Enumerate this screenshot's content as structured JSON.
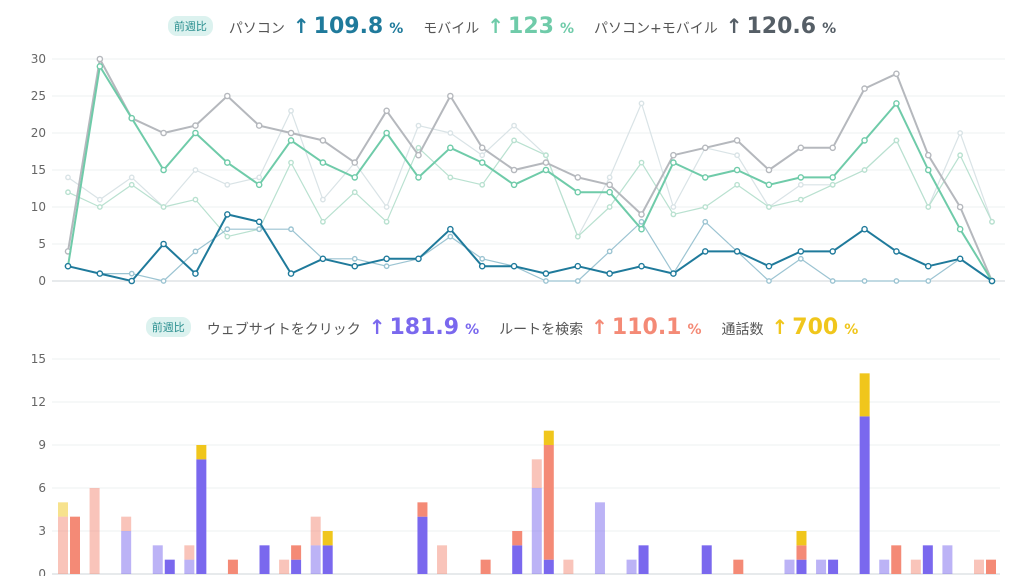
{
  "colors": {
    "pc": "#1f7a9b",
    "mobile": "#6fcba9",
    "pc_mobile": "#555e66",
    "website_click": "#7a68ee",
    "route_search": "#f48a76",
    "calls": "#f0c61c",
    "badge": "#2a8f8f"
  },
  "top_legend": {
    "badge": "前週比",
    "items": [
      {
        "name": "パソコン",
        "arrow": "↑",
        "value": "109.8",
        "unit": "%",
        "color": "#1f7a9b",
        "arrow_color": "#1f7a9b"
      },
      {
        "name": "モバイル",
        "arrow": "↑",
        "value": "123",
        "unit": "%",
        "color": "#6fcba9",
        "arrow_color": "#6fcba9"
      },
      {
        "name": "パソコン+モバイル",
        "arrow": "↑",
        "value": "120.6",
        "unit": "%",
        "color": "#555e66",
        "arrow_color": "#555e66"
      }
    ]
  },
  "bottom_legend": {
    "badge": "前週比",
    "items": [
      {
        "name": "ウェブサイトをクリック",
        "arrow": "↑",
        "value": "181.9",
        "unit": "%",
        "color": "#7a68ee",
        "arrow_color": "#7a68ee"
      },
      {
        "name": "ルートを検索",
        "arrow": "↑",
        "value": "110.1",
        "unit": "%",
        "color": "#f48a76",
        "arrow_color": "#f48a76"
      },
      {
        "name": "通話数",
        "arrow": "↑",
        "value": "700",
        "unit": "%",
        "color": "#f0c61c",
        "arrow_color": "#f0c61c"
      }
    ]
  },
  "chart_data": [
    {
      "type": "line",
      "ylim": [
        0,
        30
      ],
      "yticks": [
        0,
        5,
        10,
        15,
        20,
        25,
        30
      ],
      "x": [
        1,
        2,
        3,
        4,
        5,
        6,
        7,
        8,
        9,
        10,
        11,
        12,
        13,
        14,
        15,
        16,
        17,
        18,
        19,
        20,
        21,
        22,
        23,
        24,
        25,
        26,
        27,
        28,
        29,
        30
      ],
      "series": [
        {
          "key": "pc_mobile",
          "color": "#b5b8bd",
          "width": 2,
          "values": [
            4,
            30,
            22,
            20,
            21,
            25,
            21,
            20,
            19,
            16,
            23,
            17,
            25,
            18,
            15,
            16,
            14,
            13,
            9,
            17,
            18,
            19,
            15,
            18,
            18,
            26,
            28,
            17,
            10,
            0
          ]
        },
        {
          "key": "mobile",
          "color": "#6fcba9",
          "width": 2,
          "values": [
            2,
            29,
            22,
            15,
            20,
            16,
            13,
            19,
            16,
            14,
            20,
            14,
            18,
            16,
            13,
            15,
            12,
            12,
            7,
            16,
            14,
            15,
            13,
            14,
            14,
            19,
            24,
            15,
            7,
            0
          ]
        },
        {
          "key": "pc",
          "color": "#1f7a9b",
          "width": 2,
          "values": [
            2,
            1,
            0,
            5,
            1,
            9,
            8,
            1,
            3,
            2,
            3,
            3,
            7,
            2,
            2,
            1,
            2,
            1,
            2,
            1,
            4,
            4,
            2,
            4,
            4,
            7,
            4,
            2,
            3,
            0
          ]
        },
        {
          "key": "pc_mobile_prev",
          "color": "#d9e3e6",
          "width": 1.2,
          "values": [
            14,
            11,
            14,
            10,
            15,
            13,
            14,
            23,
            11,
            16,
            10,
            21,
            20,
            17,
            21,
            17,
            6,
            14,
            24,
            10,
            18,
            17,
            10,
            13,
            13,
            15,
            19,
            10,
            20,
            8
          ]
        },
        {
          "key": "mobile_prev",
          "color": "#b9e1d0",
          "width": 1.2,
          "values": [
            12,
            10,
            13,
            10,
            11,
            6,
            7,
            16,
            8,
            12,
            8,
            18,
            14,
            13,
            19,
            17,
            6,
            10,
            16,
            9,
            10,
            13,
            10,
            11,
            13,
            15,
            19,
            10,
            17,
            8
          ]
        },
        {
          "key": "pc_prev",
          "color": "#9cc4d2",
          "width": 1.2,
          "values": [
            2,
            1,
            1,
            0,
            4,
            7,
            7,
            7,
            3,
            3,
            2,
            3,
            6,
            3,
            2,
            0,
            0,
            4,
            8,
            1,
            8,
            4,
            0,
            3,
            0,
            0,
            0,
            0,
            3,
            0
          ]
        }
      ]
    },
    {
      "type": "bar",
      "stacked": true,
      "ylim": [
        0,
        15
      ],
      "yticks": [
        0,
        3,
        6,
        9,
        12,
        15
      ],
      "x": [
        1,
        2,
        3,
        4,
        5,
        6,
        7,
        8,
        9,
        10,
        11,
        12,
        13,
        14,
        15,
        16,
        17,
        18,
        19,
        20,
        21,
        22,
        23,
        24,
        25,
        26,
        27,
        28,
        29,
        30
      ],
      "series": [
        {
          "name": "ウェブサイトをクリック",
          "color": "#7a68ee",
          "prev": [
            0,
            0,
            3,
            2,
            1,
            0,
            0,
            0,
            2,
            0,
            0,
            0,
            0,
            0,
            0,
            6,
            0,
            5,
            1,
            0,
            0,
            0,
            0,
            1,
            1,
            0,
            1,
            0,
            2,
            0
          ],
          "curr": [
            0,
            0,
            0,
            1,
            8,
            0,
            2,
            1,
            2,
            0,
            0,
            4,
            0,
            0,
            2,
            1,
            0,
            0,
            2,
            0,
            2,
            0,
            0,
            1,
            1,
            11,
            0,
            2,
            0,
            0
          ]
        },
        {
          "name": "ルートを検索",
          "color": "#f48a76",
          "prev": [
            4,
            6,
            1,
            0,
            1,
            0,
            0,
            1,
            2,
            0,
            0,
            0,
            2,
            0,
            0,
            2,
            1,
            0,
            0,
            0,
            0,
            0,
            0,
            0,
            0,
            0,
            0,
            1,
            0,
            1
          ],
          "curr": [
            4,
            0,
            0,
            0,
            0,
            1,
            0,
            1,
            0,
            0,
            0,
            1,
            0,
            1,
            1,
            8,
            0,
            0,
            0,
            0,
            0,
            1,
            0,
            1,
            0,
            0,
            2,
            0,
            0,
            1
          ]
        },
        {
          "name": "通話数",
          "color": "#f0c61c",
          "prev": [
            1,
            0,
            0,
            0,
            0,
            0,
            0,
            0,
            0,
            0,
            0,
            0,
            0,
            0,
            0,
            0,
            0,
            0,
            0,
            0,
            0,
            0,
            0,
            0,
            0,
            0,
            0,
            0,
            0,
            0
          ],
          "curr": [
            0,
            0,
            0,
            0,
            1,
            0,
            0,
            0,
            1,
            0,
            0,
            0,
            0,
            0,
            0,
            1,
            0,
            0,
            0,
            0,
            0,
            0,
            0,
            1,
            0,
            3,
            0,
            0,
            0,
            0
          ]
        }
      ]
    }
  ]
}
